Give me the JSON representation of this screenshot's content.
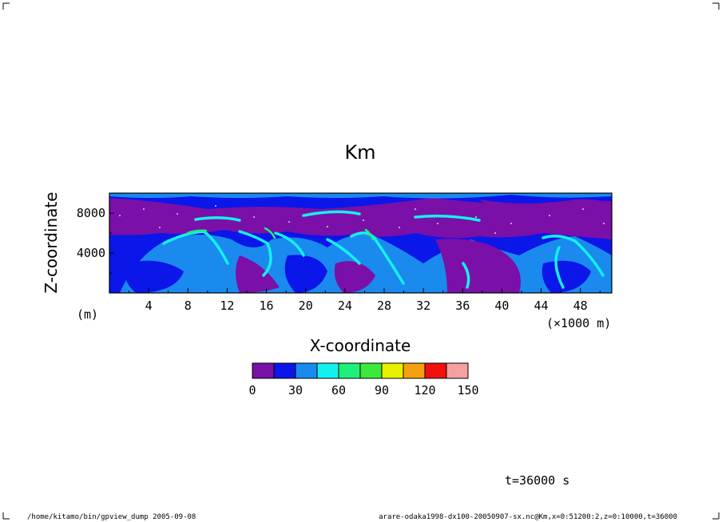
{
  "chart_data": {
    "type": "heatmap",
    "title": "Km",
    "xlabel": "X-coordinate",
    "ylabel": "Z-coordinate",
    "x_unit": "(×1000 m)",
    "y_unit": "(m)",
    "xlim": [
      0,
      51.2
    ],
    "ylim": [
      0,
      10000
    ],
    "x_ticks": [
      "4",
      "8",
      "12",
      "16",
      "20",
      "24",
      "28",
      "32",
      "36",
      "40",
      "44",
      "48"
    ],
    "y_ticks": [
      "4000",
      "8000"
    ],
    "colorbar": {
      "levels": [
        0,
        15,
        30,
        45,
        60,
        75,
        90,
        105,
        120,
        135,
        150
      ],
      "tick_labels": [
        "0",
        "30",
        "60",
        "90",
        "120",
        "150"
      ],
      "colors": [
        "#7a10a8",
        "#0b16e8",
        "#1a8aee",
        "#14f0f0",
        "#1ef07a",
        "#3ce83a",
        "#e8f000",
        "#f5a010",
        "#f01010",
        "#f5a0a0"
      ]
    }
  },
  "time_label": "t=36000 s",
  "footer": {
    "left": "/home/kitamo/bin/gpview_dump  2005-09-08",
    "right": "arare-odaka1998-dx100-20050907-sx.nc@Km,x=0:51200:2,z=0:10000,t=36000"
  }
}
